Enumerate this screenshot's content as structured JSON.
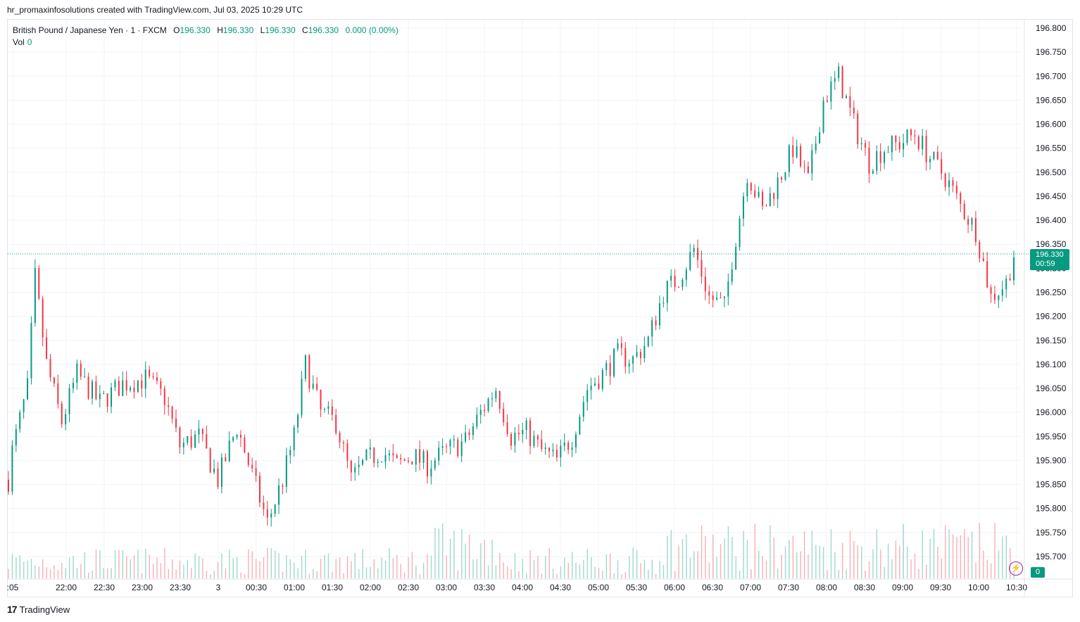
{
  "header": {
    "attribution": "hr_promaxinfosolutions created with TradingView.com, Jul 03, 2025 10:29 UTC"
  },
  "legend": {
    "symbol": "British Pound / Japanese Yen · 1 · FXCM",
    "open_label": "O",
    "open": "196.330",
    "high_label": "H",
    "high": "196.330",
    "low_label": "L",
    "low": "196.330",
    "close_label": "C",
    "close": "196.330",
    "change": "0.000 (0.00%)",
    "vol_label": "Vol",
    "vol_value": "0"
  },
  "last_price": {
    "price": "196.330",
    "countdown": "00:59"
  },
  "volume_badge": "0",
  "footer": {
    "brand": "TradingView",
    "logo_glyph": "17"
  },
  "icons": {
    "replay": "lightning-icon"
  },
  "colors": {
    "up": "#089981",
    "down": "#f23645",
    "grid": "#f0f3fa",
    "text": "#131722"
  },
  "chart_data": {
    "type": "candlestick",
    "symbol": "GBPJPY",
    "interval": "1",
    "ylim": [
      196.675,
      196.82
    ],
    "y_ticks": [
      "196.800",
      "196.750",
      "196.700",
      "196.650",
      "196.600",
      "196.550",
      "196.500",
      "196.450",
      "196.400",
      "196.350",
      "196.300",
      "196.250",
      "196.200",
      "196.150",
      "196.100",
      "196.050",
      "196.000",
      "195.950",
      "195.900",
      "195.850",
      "195.800",
      "195.750",
      "195.700"
    ],
    "x_ticks": [
      ":05",
      "22:00",
      "22:30",
      "23:00",
      "23:30",
      "3",
      "00:30",
      "01:00",
      "01:30",
      "02:00",
      "02:30",
      "03:00",
      "03:30",
      "04:00",
      "04:30",
      "05:00",
      "05:30",
      "06:00",
      "06:30",
      "07:00",
      "07:30",
      "08:00",
      "08:30",
      "09:00",
      "09:30",
      "10:00",
      "10:30"
    ],
    "price_path": [
      [
        0,
        195.86
      ],
      [
        1,
        195.92
      ],
      [
        5,
        196.05
      ],
      [
        7,
        196.28
      ],
      [
        10,
        196.1
      ],
      [
        14,
        195.98
      ],
      [
        18,
        196.08
      ],
      [
        24,
        196.02
      ],
      [
        30,
        196.06
      ],
      [
        36,
        196.07
      ],
      [
        41,
        196.03
      ],
      [
        45,
        195.93
      ],
      [
        50,
        195.95
      ],
      [
        55,
        195.86
      ],
      [
        60,
        195.97
      ],
      [
        64,
        195.87
      ],
      [
        68,
        195.77
      ],
      [
        72,
        195.86
      ],
      [
        75,
        195.95
      ],
      [
        78,
        196.1
      ],
      [
        82,
        196.0
      ],
      [
        86,
        195.98
      ],
      [
        90,
        195.86
      ],
      [
        94,
        195.9
      ],
      [
        98,
        195.92
      ],
      [
        102,
        195.89
      ],
      [
        106,
        195.91
      ],
      [
        110,
        195.89
      ],
      [
        115,
        195.92
      ],
      [
        120,
        195.94
      ],
      [
        124,
        196.0
      ],
      [
        128,
        196.05
      ],
      [
        132,
        195.95
      ],
      [
        136,
        195.96
      ],
      [
        140,
        195.92
      ],
      [
        144,
        195.9
      ],
      [
        148,
        195.95
      ],
      [
        152,
        196.05
      ],
      [
        156,
        196.08
      ],
      [
        160,
        196.12
      ],
      [
        164,
        196.11
      ],
      [
        168,
        196.15
      ],
      [
        172,
        196.25
      ],
      [
        176,
        196.28
      ],
      [
        180,
        196.34
      ],
      [
        184,
        196.24
      ],
      [
        188,
        196.22
      ],
      [
        190,
        196.32
      ],
      [
        194,
        196.5
      ],
      [
        198,
        196.42
      ],
      [
        202,
        196.48
      ],
      [
        206,
        196.55
      ],
      [
        210,
        196.48
      ],
      [
        214,
        196.65
      ],
      [
        218,
        196.7
      ],
      [
        222,
        196.6
      ],
      [
        226,
        196.52
      ],
      [
        230,
        196.55
      ],
      [
        234,
        196.56
      ],
      [
        238,
        196.58
      ],
      [
        242,
        196.53
      ],
      [
        246,
        196.49
      ],
      [
        250,
        196.43
      ],
      [
        254,
        196.38
      ],
      [
        258,
        196.24
      ],
      [
        262,
        196.27
      ],
      [
        264,
        196.33
      ]
    ],
    "volume_ylim": [
      0,
      25
    ]
  }
}
